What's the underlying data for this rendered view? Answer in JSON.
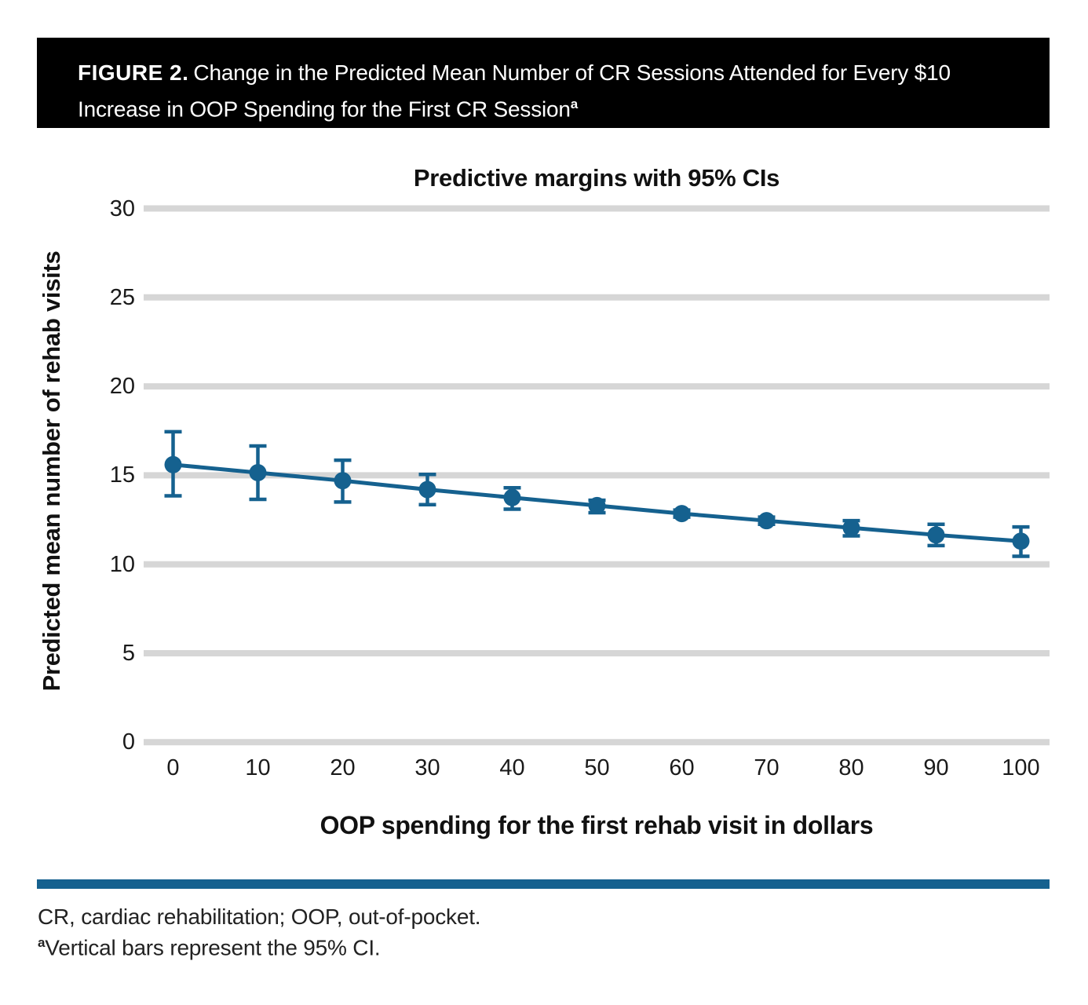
{
  "header": {
    "label": "FIGURE 2.",
    "line1_rest": "Change in the Predicted Mean Number of CR Sessions Attended for Every $10",
    "line2": "Increase in OOP Spending for the First CR Session",
    "superscript": "a"
  },
  "chart_data": {
    "type": "line",
    "title": "Predictive margins with 95% CIs",
    "xlabel": "OOP spending for the first rehab visit in dollars",
    "ylabel": "Predicted mean number of rehab visits",
    "series_name": "Predicted mean number of rehab visits",
    "x": [
      0,
      10,
      20,
      30,
      40,
      50,
      60,
      70,
      80,
      90,
      100
    ],
    "y": [
      15.6,
      15.15,
      14.7,
      14.2,
      13.75,
      13.3,
      12.85,
      12.45,
      12.05,
      11.65,
      11.3
    ],
    "ci_low": [
      13.85,
      13.65,
      13.5,
      13.35,
      13.1,
      12.9,
      12.65,
      12.25,
      11.6,
      11.05,
      10.45
    ],
    "ci_high": [
      17.45,
      16.65,
      15.85,
      15.05,
      14.3,
      13.6,
      13.05,
      12.65,
      12.45,
      12.25,
      12.1
    ],
    "error_bars": true,
    "xlim": [
      0,
      100
    ],
    "ylim": [
      0,
      30
    ],
    "xticks": [
      0,
      10,
      20,
      30,
      40,
      50,
      60,
      70,
      80,
      90,
      100
    ],
    "yticks": [
      0,
      5,
      10,
      15,
      20,
      25,
      30
    ],
    "grid": "horizontal",
    "legend": "none"
  },
  "colors": {
    "accent": "#15618f",
    "grid": "#d6d6d6",
    "header_bg": "#000000"
  },
  "footnotes": {
    "abbreviations": "CR, cardiac rehabilitation; OOP, out-of-pocket.",
    "note_superscript": "a",
    "note_text": "Vertical bars represent the 95% CI."
  }
}
